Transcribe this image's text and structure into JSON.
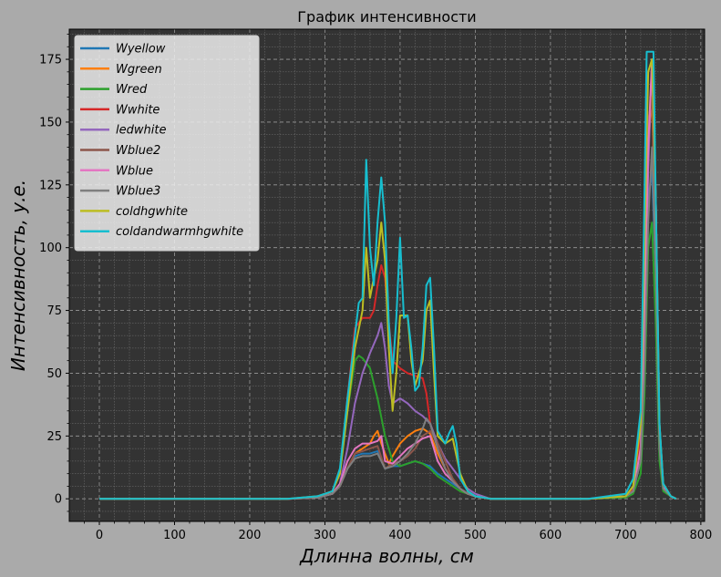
{
  "chart_data": {
    "type": "line",
    "title": "График интенсивности",
    "xlabel": "Длинна волны, см",
    "ylabel": "Интенсивность, у.е.",
    "xlim": [
      -40,
      805
    ],
    "ylim": [
      -9,
      187
    ],
    "xticks": [
      0,
      100,
      200,
      300,
      400,
      500,
      600,
      700,
      800
    ],
    "yticks": [
      0,
      25,
      50,
      75,
      100,
      125,
      150,
      175
    ],
    "grid": true,
    "legend_position": "top-left",
    "background_color": "#333333",
    "series": [
      {
        "name": "Wyellow",
        "color": "#1f77b4",
        "x": [
          0,
          250,
          290,
          310,
          320,
          330,
          340,
          350,
          360,
          370,
          380,
          390,
          400,
          410,
          420,
          430,
          440,
          450,
          460,
          470,
          480,
          490,
          500,
          520,
          650,
          700,
          710,
          720,
          725,
          730,
          735,
          740,
          745,
          750,
          760,
          767
        ],
        "y": [
          0,
          0,
          0.5,
          2,
          5,
          12,
          17,
          18,
          18,
          19,
          12,
          13,
          13,
          14,
          15,
          14,
          13,
          10,
          8,
          6,
          4,
          2,
          1,
          0,
          0,
          1,
          3,
          15,
          60,
          120,
          130,
          90,
          20,
          5,
          1,
          0
        ]
      },
      {
        "name": "Wgreen",
        "color": "#ff7f0e",
        "x": [
          0,
          250,
          290,
          310,
          320,
          330,
          340,
          350,
          360,
          365,
          370,
          375,
          380,
          385,
          390,
          400,
          410,
          420,
          430,
          440,
          450,
          460,
          470,
          480,
          490,
          500,
          520,
          650,
          700,
          710,
          720,
          725,
          730,
          735,
          740,
          745,
          750,
          760,
          767
        ],
        "y": [
          0,
          0,
          0.5,
          2,
          5,
          12,
          18,
          20,
          22,
          25,
          27,
          22,
          18,
          14,
          17,
          22,
          25,
          27,
          28,
          26,
          18,
          12,
          8,
          4,
          2,
          1,
          0,
          0,
          1,
          4,
          20,
          70,
          140,
          160,
          100,
          25,
          5,
          1,
          0
        ]
      },
      {
        "name": "Wred",
        "color": "#2ca02c",
        "x": [
          0,
          250,
          290,
          310,
          320,
          330,
          340,
          345,
          350,
          360,
          370,
          380,
          390,
          400,
          410,
          420,
          430,
          440,
          450,
          460,
          470,
          480,
          490,
          500,
          520,
          650,
          700,
          710,
          720,
          725,
          730,
          735,
          740,
          745,
          750,
          760,
          767
        ],
        "y": [
          0,
          0,
          0.5,
          3,
          10,
          35,
          55,
          57,
          56,
          52,
          40,
          25,
          15,
          13,
          14,
          15,
          14,
          12,
          9,
          7,
          5,
          3,
          2,
          1,
          0,
          0,
          0.5,
          2,
          10,
          40,
          100,
          110,
          70,
          15,
          3,
          1,
          0
        ]
      },
      {
        "name": "Wwhite",
        "color": "#d62728",
        "x": [
          0,
          250,
          290,
          310,
          320,
          330,
          340,
          350,
          360,
          365,
          370,
          375,
          380,
          385,
          390,
          400,
          410,
          420,
          430,
          435,
          440,
          450,
          460,
          470,
          480,
          490,
          500,
          520,
          650,
          700,
          710,
          720,
          725,
          730,
          735,
          740,
          745,
          750,
          760,
          767
        ],
        "y": [
          0,
          0,
          0.5,
          3,
          10,
          40,
          68,
          72,
          72,
          75,
          85,
          93,
          88,
          70,
          55,
          52,
          50,
          49,
          48,
          42,
          30,
          20,
          12,
          8,
          4,
          2,
          1,
          0,
          0,
          1,
          4,
          25,
          80,
          150,
          160,
          110,
          25,
          5,
          1,
          0
        ]
      },
      {
        "name": "ledwhite",
        "color": "#9467bd",
        "x": [
          0,
          250,
          290,
          310,
          320,
          330,
          340,
          350,
          360,
          370,
          375,
          380,
          385,
          390,
          400,
          410,
          420,
          430,
          440,
          450,
          460,
          470,
          480,
          490,
          500,
          520,
          650,
          700,
          710,
          720,
          725,
          730,
          735,
          740,
          745,
          750,
          760,
          767
        ],
        "y": [
          0,
          0,
          0.5,
          2,
          6,
          20,
          38,
          50,
          58,
          65,
          70,
          60,
          45,
          38,
          40,
          38,
          35,
          33,
          30,
          22,
          16,
          12,
          8,
          4,
          2,
          0,
          0,
          1,
          3,
          20,
          60,
          130,
          175,
          120,
          30,
          6,
          1,
          0
        ]
      },
      {
        "name": "Wblue2",
        "color": "#8c564b",
        "x": [
          0,
          250,
          290,
          310,
          320,
          330,
          340,
          350,
          360,
          370,
          380,
          390,
          400,
          410,
          420,
          430,
          440,
          450,
          460,
          470,
          480,
          490,
          500,
          520,
          650,
          700,
          710,
          720,
          725,
          730,
          735,
          740,
          745,
          750,
          760,
          767
        ],
        "y": [
          0,
          0,
          0.5,
          2,
          5,
          12,
          18,
          19,
          20,
          21,
          12,
          14,
          15,
          17,
          20,
          25,
          27,
          22,
          15,
          8,
          4,
          2,
          1,
          0,
          0,
          1,
          3,
          20,
          70,
          150,
          160,
          110,
          25,
          5,
          1,
          0
        ]
      },
      {
        "name": "Wblue",
        "color": "#e377c2",
        "x": [
          0,
          250,
          290,
          310,
          320,
          330,
          340,
          350,
          360,
          370,
          375,
          380,
          390,
          400,
          410,
          420,
          430,
          440,
          450,
          460,
          470,
          480,
          490,
          500,
          520,
          650,
          700,
          710,
          720,
          725,
          730,
          735,
          740,
          745,
          750,
          760,
          767
        ],
        "y": [
          0,
          0,
          0.5,
          2,
          6,
          15,
          20,
          22,
          22,
          23,
          25,
          15,
          14,
          17,
          20,
          22,
          24,
          25,
          15,
          10,
          7,
          4,
          2,
          1,
          0,
          0,
          1,
          3,
          20,
          70,
          140,
          175,
          120,
          25,
          5,
          1,
          0
        ]
      },
      {
        "name": "Wblue3",
        "color": "#7f7f7f",
        "x": [
          0,
          250,
          290,
          310,
          320,
          330,
          340,
          350,
          360,
          370,
          380,
          390,
          400,
          410,
          420,
          430,
          435,
          440,
          450,
          460,
          470,
          480,
          490,
          500,
          520,
          650,
          700,
          710,
          720,
          725,
          730,
          735,
          740,
          745,
          750,
          760,
          767
        ],
        "y": [
          0,
          0,
          0.5,
          2,
          5,
          12,
          16,
          17,
          17,
          18,
          12,
          13,
          15,
          18,
          22,
          28,
          32,
          30,
          20,
          12,
          7,
          4,
          2,
          1,
          0,
          0,
          1,
          3,
          15,
          50,
          110,
          140,
          90,
          20,
          4,
          1,
          0
        ]
      },
      {
        "name": "coldhgwhite",
        "color": "#bcbd22",
        "x": [
          0,
          250,
          290,
          310,
          320,
          330,
          340,
          350,
          355,
          360,
          365,
          370,
          375,
          380,
          385,
          390,
          395,
          400,
          410,
          415,
          420,
          430,
          435,
          440,
          445,
          450,
          460,
          470,
          480,
          490,
          500,
          520,
          650,
          700,
          710,
          720,
          725,
          730,
          735,
          740,
          745,
          750,
          760,
          767
        ],
        "y": [
          0,
          0,
          1,
          3,
          10,
          35,
          60,
          75,
          100,
          80,
          88,
          95,
          110,
          95,
          60,
          35,
          50,
          73,
          73,
          55,
          45,
          55,
          75,
          79,
          50,
          25,
          22,
          24,
          10,
          3,
          1,
          0,
          0,
          1,
          5,
          30,
          100,
          170,
          175,
          120,
          30,
          6,
          1,
          0
        ]
      },
      {
        "name": "coldandwarmhgwhite",
        "color": "#17becf",
        "x": [
          0,
          250,
          290,
          310,
          320,
          330,
          340,
          345,
          350,
          355,
          360,
          365,
          370,
          375,
          380,
          385,
          390,
          395,
          400,
          405,
          410,
          415,
          420,
          425,
          430,
          435,
          440,
          445,
          450,
          460,
          465,
          470,
          475,
          480,
          490,
          500,
          520,
          650,
          700,
          710,
          720,
          725,
          728,
          732,
          737,
          740,
          745,
          750,
          760,
          767
        ],
        "y": [
          0,
          0,
          1,
          3,
          12,
          40,
          65,
          78,
          80,
          135,
          100,
          85,
          110,
          128,
          110,
          70,
          50,
          72,
          104,
          72,
          73,
          60,
          43,
          45,
          60,
          85,
          88,
          60,
          27,
          22,
          26,
          29,
          22,
          8,
          3,
          1,
          0,
          0,
          2,
          8,
          35,
          120,
          178,
          178,
          178,
          120,
          30,
          6,
          1,
          0
        ]
      }
    ]
  }
}
